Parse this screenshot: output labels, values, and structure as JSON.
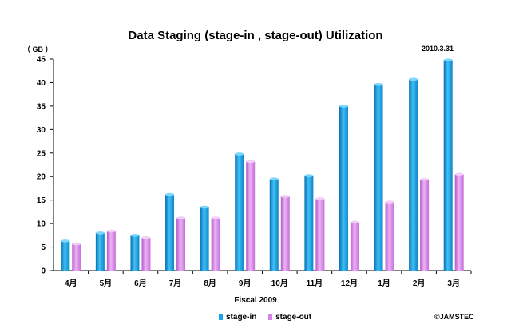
{
  "chart_data": {
    "type": "bar",
    "title": "Data Staging  (stage-in , stage-out) Utilization",
    "date_label": "2010.3.31",
    "y_unit_label": "（ GB ）",
    "xlabel": "Fiscal 2009",
    "ylabel": "",
    "copyright": "©JAMSTEC",
    "categories": [
      "4月",
      "5月",
      "6月",
      "7月",
      "8月",
      "9月",
      "10月",
      "11月",
      "12月",
      "1月",
      "2月",
      "3月"
    ],
    "ylim": [
      0,
      45
    ],
    "yticks": [
      0,
      5,
      10,
      15,
      20,
      25,
      30,
      35,
      40,
      45
    ],
    "grid": false,
    "legend_position": "bottom-center",
    "series": [
      {
        "name": "stage-in",
        "color": "#1aa3e6",
        "values": [
          6.3,
          8.0,
          7.5,
          16.2,
          13.5,
          24.8,
          19.5,
          20.2,
          35.0,
          39.6,
          40.7,
          44.8
        ]
      },
      {
        "name": "stage-out",
        "color": "#d983e8",
        "values": [
          5.7,
          8.4,
          7.0,
          11.2,
          11.2,
          23.2,
          15.8,
          15.3,
          10.3,
          14.6,
          19.4,
          20.5
        ]
      }
    ]
  }
}
